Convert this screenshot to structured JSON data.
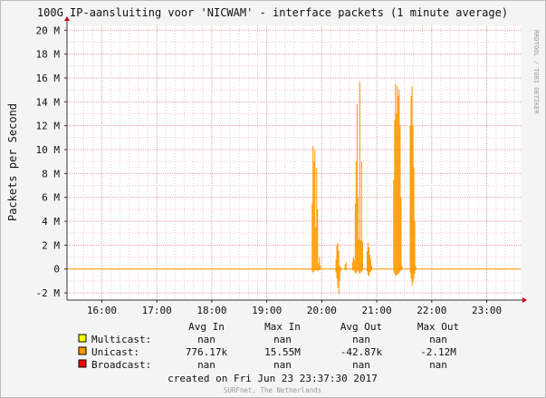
{
  "title": "100G IP-aansluiting voor 'NICWAM' - interface packets (1 minute average)",
  "watermark": "RRDTOOL / TOBI OETIKER",
  "footer": "SURFnet, The Netherlands",
  "created": "created on Fri Jun 23 23:37:30 2017",
  "legend": {
    "headers": [
      "Avg In",
      "Max In",
      "Avg Out",
      "Max Out"
    ],
    "rows": [
      {
        "label": "Multicast:",
        "color": "#ffff00",
        "values": [
          "nan",
          "nan",
          "nan",
          "nan"
        ]
      },
      {
        "label": "Unicast:",
        "color": "#ff9900",
        "values": [
          "776.17k",
          "15.55M",
          "-42.87k",
          "-2.12M"
        ]
      },
      {
        "label": "Broadcast:",
        "color": "#ff0000",
        "values": [
          "nan",
          "nan",
          "nan",
          "nan"
        ]
      }
    ]
  },
  "chart_data": {
    "type": "area",
    "title": "100G IP-aansluiting voor 'NICWAM' - interface packets (1 minute average)",
    "ylabel": "Packets per Second",
    "xlabel": "",
    "x_ticks": [
      "16:00",
      "17:00",
      "18:00",
      "19:00",
      "20:00",
      "21:00",
      "22:00",
      "23:00"
    ],
    "y_ticks": [
      "-2 M",
      "0",
      "2 M",
      "4 M",
      "6 M",
      "8 M",
      "10 M",
      "12 M",
      "14 M",
      "16 M",
      "18 M",
      "20 M"
    ],
    "ylim": [
      -2.6,
      20.4
    ],
    "y_unit": "M",
    "xlim": [
      "15:22",
      "23:37"
    ],
    "grid": true,
    "colors": {
      "area": "#ff9900",
      "grid_minor": "#f0c8c8",
      "grid_major": "#e0a0a0",
      "axis": "#cc0000",
      "zero_line": "#ff9900"
    },
    "series": [
      {
        "name": "Unicast",
        "x": [
          "19:49",
          "19:50",
          "19:51",
          "19:52",
          "19:53",
          "19:54",
          "19:55",
          "19:56",
          "19:57",
          "19:58",
          "20:15",
          "20:16",
          "20:17",
          "20:18",
          "20:19",
          "20:20",
          "20:25",
          "20:26",
          "20:33",
          "20:34",
          "20:35",
          "20:36",
          "20:37",
          "20:38",
          "20:39",
          "20:40",
          "20:41",
          "20:42",
          "20:43",
          "20:44",
          "20:49",
          "20:50",
          "20:51",
          "20:52",
          "20:53",
          "20:54",
          "21:18",
          "21:19",
          "21:20",
          "21:21",
          "21:22",
          "21:23",
          "21:24",
          "21:25",
          "21:26",
          "21:27",
          "21:36",
          "21:37",
          "21:38",
          "21:39",
          "21:40",
          "21:41",
          "21:42"
        ],
        "in": [
          5.5,
          10.3,
          9.0,
          10.0,
          3.5,
          8.5,
          5.0,
          0.5,
          1.0,
          0.3,
          0.8,
          2.0,
          2.2,
          1.5,
          0.3,
          0.2,
          0.4,
          0.6,
          0.6,
          1.0,
          0.8,
          5.5,
          9.0,
          13.8,
          6.0,
          2.5,
          15.7,
          2.4,
          9.0,
          2.3,
          1.5,
          2.2,
          1.8,
          1.2,
          0.8,
          0.3,
          7.5,
          12.5,
          15.5,
          13.0,
          15.3,
          14.5,
          15.0,
          12.0,
          6.0,
          0.3,
          12.0,
          14.5,
          15.3,
          12.0,
          8.5,
          4.0,
          0.3
        ],
        "out": [
          -0.2,
          -0.3,
          -0.2,
          -0.1,
          -0.1,
          -0.1,
          -0.2,
          -0.1,
          -0.1,
          -0.05,
          -0.3,
          -0.8,
          -1.6,
          -2.1,
          -1.0,
          -0.2,
          -0.1,
          -0.1,
          -0.1,
          -0.1,
          -0.2,
          -0.3,
          -0.4,
          -0.2,
          -0.1,
          -0.3,
          -0.4,
          -0.2,
          -0.3,
          -0.1,
          -0.2,
          -0.5,
          -0.6,
          -0.3,
          -0.2,
          -0.1,
          -0.2,
          -0.4,
          -0.6,
          -0.5,
          -0.5,
          -0.4,
          -0.3,
          -0.2,
          -0.1,
          -0.05,
          -0.3,
          -0.8,
          -1.4,
          -1.1,
          -0.8,
          -0.4,
          -0.1
        ]
      }
    ]
  }
}
